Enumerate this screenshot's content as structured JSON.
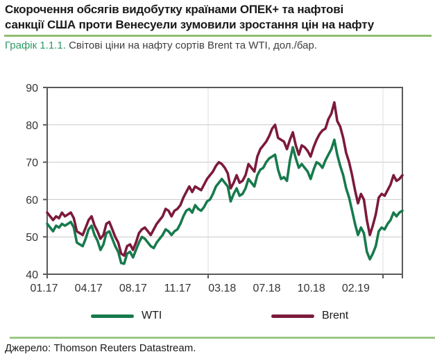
{
  "page": {
    "title_lines": [
      "Скорочення обсягів видобутку країнами ОПЕК+  та нафтові",
      "санкції США проти Венесуели зумовили зростання цін на нафту"
    ],
    "caption_label": "Графік 1.1.1.",
    "caption_text": " Світові ціни на нафту сортів Brent та WTI, дол./бар.",
    "source": "Джерело: Thomson Reuters Datastream.",
    "colors": {
      "title_rule_green": "#8fbe6f",
      "source_rule_green": "#9cc983",
      "caption_label_green": "#2b9a63",
      "axis_border_gray": "#595959",
      "gridline_gray": "#c9c9c9",
      "tick_label_gray": "#333333"
    }
  },
  "chart_data": {
    "type": "line",
    "title": "Світові ціни на нафту сортів Brent та WTI, дол./бар.",
    "ylabel": "дол./бар.",
    "ylim": [
      40,
      90
    ],
    "y_ticks": [
      40,
      50,
      60,
      70,
      80,
      90
    ],
    "x_tick_labels": [
      "01.17",
      "04.17",
      "08.17",
      "11.17",
      "03.18",
      "07.18",
      "10.18",
      "02.19"
    ],
    "grid": "horizontal",
    "legend_position": "bottom",
    "series": [
      {
        "name": "WTI",
        "color": "#177a4c",
        "values": [
          53.5,
          52.5,
          51.5,
          53,
          52.5,
          53.5,
          53,
          53.5,
          54,
          52.5,
          48.5,
          48,
          47.5,
          49.5,
          52,
          53,
          50.5,
          49,
          46.5,
          48,
          51,
          51.5,
          49.5,
          47.5,
          46,
          43,
          42.8,
          45.5,
          46,
          44.5,
          46.5,
          48.5,
          50,
          49.5,
          48.5,
          47.5,
          47,
          48.5,
          49.5,
          50.5,
          52,
          51.5,
          50.5,
          51.5,
          52,
          53.5,
          55.5,
          57,
          57.5,
          56.5,
          58.5,
          57.5,
          57,
          58,
          59.5,
          60,
          61.5,
          63.5,
          64.5,
          65.5,
          64.5,
          63.5,
          59.5,
          61.5,
          63,
          61,
          61.5,
          63,
          65.5,
          64.5,
          63.5,
          66.5,
          68,
          68.5,
          70,
          71,
          71.5,
          72,
          68,
          65.5,
          66,
          65,
          70.5,
          74,
          71,
          68.5,
          69.5,
          68.5,
          67.5,
          65.5,
          68,
          70,
          69.5,
          68.5,
          70.5,
          72,
          73.5,
          76,
          72,
          69,
          66.5,
          63,
          60.5,
          57,
          53.5,
          50.5,
          52.5,
          51,
          46,
          44,
          45.5,
          47.5,
          51.5,
          52.5,
          52,
          53.5,
          54.5,
          56.5,
          55.5,
          56.5,
          57
        ]
      },
      {
        "name": "Brent",
        "color": "#7c1a3c",
        "values": [
          56.5,
          55.5,
          54.5,
          55.5,
          55,
          56.5,
          55.5,
          56,
          56.5,
          55,
          51.5,
          51,
          50.5,
          52.5,
          54.5,
          55.5,
          53,
          51.5,
          49.5,
          50.5,
          53.5,
          54,
          52,
          50,
          48.5,
          45.5,
          45,
          47.5,
          48,
          46.5,
          48.5,
          51,
          52,
          52.5,
          51.5,
          50.5,
          52,
          53.5,
          54.5,
          55.5,
          57.5,
          57,
          55.5,
          57,
          57.5,
          58.5,
          60.5,
          62,
          63.5,
          62,
          63.5,
          63,
          62.5,
          64,
          65.5,
          66.5,
          67.5,
          69,
          70,
          69.5,
          68.5,
          67,
          63,
          64.5,
          66.5,
          64.5,
          65,
          66.5,
          69.5,
          68.5,
          67.5,
          71.5,
          73.5,
          74.5,
          75.5,
          77,
          79,
          80,
          76.5,
          76,
          75.5,
          73.5,
          76,
          78,
          74.5,
          72,
          74.5,
          74,
          73,
          71.5,
          74,
          76,
          77.5,
          78.5,
          79,
          81.5,
          83,
          86,
          81,
          79.5,
          76.5,
          72.5,
          70,
          66.5,
          62.5,
          59,
          61.5,
          60,
          54.5,
          50.5,
          53,
          56,
          60.5,
          61.5,
          61,
          62.5,
          64,
          66.5,
          65,
          65.5,
          66.5
        ]
      }
    ]
  }
}
